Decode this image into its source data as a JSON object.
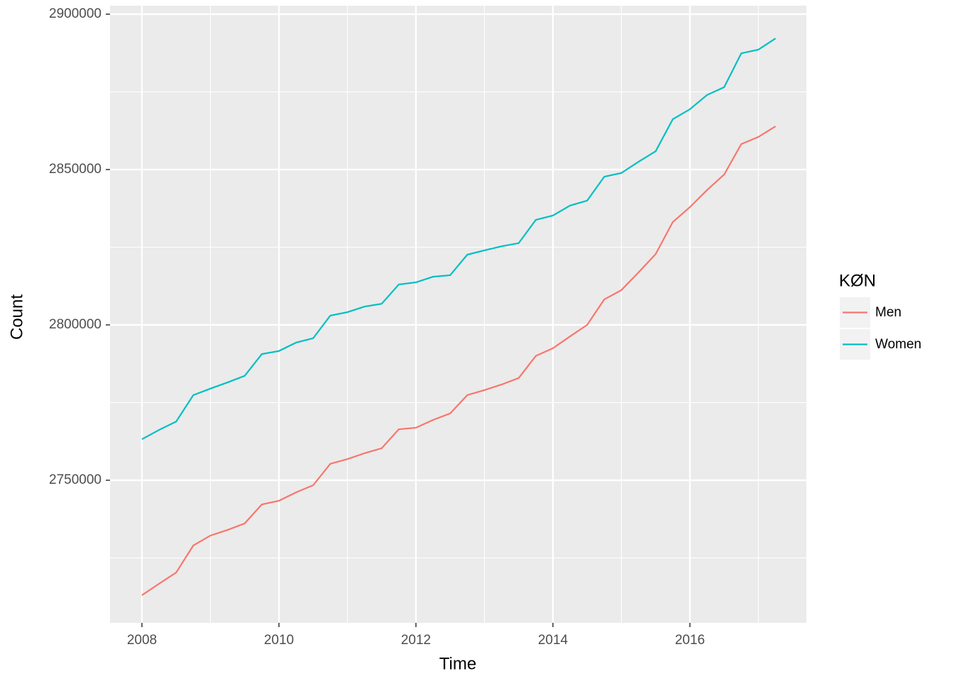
{
  "chart_data": {
    "type": "line",
    "x_label": "Time",
    "y_label": "Count",
    "legend_title": "KØN",
    "legend": "right",
    "grid": true,
    "x": [
      2008,
      2008.25,
      2008.5,
      2008.75,
      2009,
      2009.25,
      2009.5,
      2009.75,
      2010,
      2010.25,
      2010.5,
      2010.75,
      2011,
      2011.25,
      2011.5,
      2011.75,
      2012,
      2012.25,
      2012.5,
      2012.75,
      2013,
      2013.25,
      2013.5,
      2013.75,
      2014,
      2014.25,
      2014.5,
      2014.75,
      2015,
      2015.25,
      2015.5,
      2015.75,
      2016,
      2016.25,
      2016.5,
      2016.75,
      2017,
      2017.25
    ],
    "series": [
      {
        "name": "Men",
        "color": "#F8766D",
        "values": [
          2713000,
          2716700,
          2720300,
          2729000,
          2732200,
          2734000,
          2736100,
          2742200,
          2743400,
          2746100,
          2748400,
          2755300,
          2756800,
          2758700,
          2760300,
          2766400,
          2766900,
          2769400,
          2771500,
          2777400,
          2779000,
          2780800,
          2782900,
          2790000,
          2792500,
          2796300,
          2800000,
          2808200,
          2811200,
          2816900,
          2822800,
          2833100,
          2837900,
          2843400,
          2848400,
          2858200,
          2860500,
          2863900
        ]
      },
      {
        "name": "Women",
        "color": "#00BFC4",
        "values": [
          2763200,
          2766200,
          2768900,
          2777400,
          2779500,
          2781500,
          2783600,
          2790600,
          2791600,
          2794300,
          2795700,
          2803000,
          2804100,
          2805900,
          2806800,
          2813000,
          2813700,
          2815500,
          2816000,
          2822600,
          2824000,
          2825300,
          2826300,
          2833800,
          2835200,
          2838400,
          2840000,
          2847700,
          2848900,
          2852500,
          2855900,
          2866200,
          2869400,
          2874000,
          2876500,
          2887400,
          2888600,
          2892200
        ]
      }
    ],
    "xlim": [
      2007.534,
      2017.7
    ],
    "xticks": [
      2008,
      2010,
      2012,
      2014,
      2016
    ],
    "ylim": [
      2704110,
      2902740
    ],
    "yticks": [
      2750000,
      2800000,
      2850000,
      2900000
    ]
  }
}
